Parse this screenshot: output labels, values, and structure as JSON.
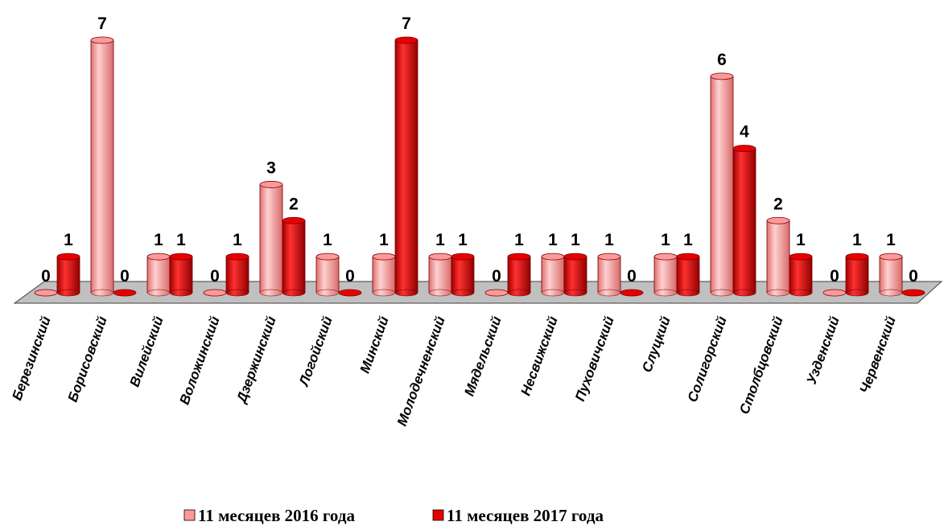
{
  "chart_data": {
    "type": "bar",
    "categories": [
      "Березинский",
      "Борисовский",
      "Вилейский",
      "Воложинский",
      "Дзержинский",
      "Логойский",
      "Минский",
      "Молодечненский",
      "Мядельский",
      "Несвижский",
      "Пуховичский",
      "Слуцкий",
      "Солигорский",
      "Столбцовский",
      "Узденский",
      "Червенский"
    ],
    "series": [
      {
        "name": "11 месяцев 2016 года",
        "color": "#ff9999",
        "values": [
          0,
          7,
          1,
          0,
          3,
          1,
          1,
          1,
          0,
          1,
          1,
          1,
          6,
          2,
          0,
          1
        ]
      },
      {
        "name": "11 месяцев 2017 года",
        "color": "#e80000",
        "values": [
          1,
          0,
          1,
          1,
          2,
          0,
          7,
          1,
          1,
          1,
          0,
          1,
          4,
          1,
          1,
          0
        ]
      }
    ],
    "legend": "bottom"
  }
}
